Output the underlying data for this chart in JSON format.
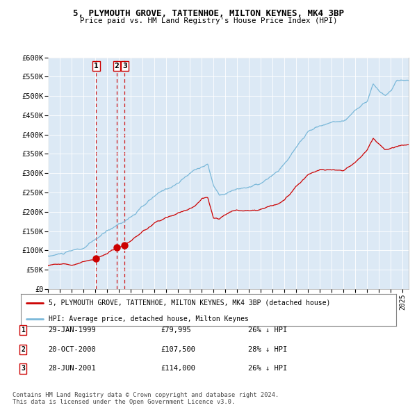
{
  "title": "5, PLYMOUTH GROVE, TATTENHOE, MILTON KEYNES, MK4 3BP",
  "subtitle": "Price paid vs. HM Land Registry's House Price Index (HPI)",
  "background_color": "#ffffff",
  "plot_bg_color": "#dce9f5",
  "hpi_color": "#7ab8d9",
  "price_color": "#cc0000",
  "ylabel_ticks": [
    "£0",
    "£50K",
    "£100K",
    "£150K",
    "£200K",
    "£250K",
    "£300K",
    "£350K",
    "£400K",
    "£450K",
    "£500K",
    "£550K",
    "£600K"
  ],
  "ylabel_values": [
    0,
    50000,
    100000,
    150000,
    200000,
    250000,
    300000,
    350000,
    400000,
    450000,
    500000,
    550000,
    600000
  ],
  "xmin": 1995.0,
  "xmax": 2025.5,
  "ymin": 0,
  "ymax": 600000,
  "sale_dates": [
    1999.08,
    2000.81,
    2001.49
  ],
  "sale_prices": [
    79995,
    107500,
    114000
  ],
  "sale_labels": [
    "1",
    "2",
    "3"
  ],
  "vline_color": "#cc0000",
  "marker_color": "#cc0000",
  "legend_label_red": "5, PLYMOUTH GROVE, TATTENHOE, MILTON KEYNES, MK4 3BP (detached house)",
  "legend_label_blue": "HPI: Average price, detached house, Milton Keynes",
  "table_rows": [
    [
      "1",
      "29-JAN-1999",
      "£79,995",
      "26% ↓ HPI"
    ],
    [
      "2",
      "20-OCT-2000",
      "£107,500",
      "28% ↓ HPI"
    ],
    [
      "3",
      "28-JUN-2001",
      "£114,000",
      "26% ↓ HPI"
    ]
  ],
  "footer": "Contains HM Land Registry data © Crown copyright and database right 2024.\nThis data is licensed under the Open Government Licence v3.0."
}
